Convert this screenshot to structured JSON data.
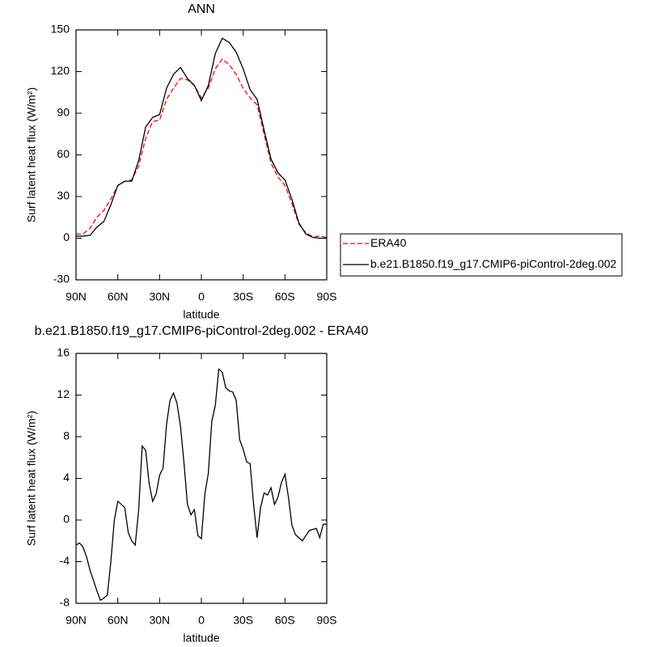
{
  "chart_data": [
    {
      "type": "line",
      "title": "ANN",
      "x_label": "latitude",
      "y_label": "Surf latent heat flux (W/m²)",
      "x": [
        90,
        85,
        80,
        75,
        70,
        65,
        60,
        55,
        50,
        45,
        40,
        35,
        30,
        25,
        20,
        15,
        10,
        5,
        0,
        -5,
        -10,
        -15,
        -20,
        -25,
        -30,
        -35,
        -40,
        -45,
        -50,
        -55,
        -60,
        -65,
        -70,
        -75,
        -80,
        -85,
        -90
      ],
      "series": [
        {
          "name": "ERA40",
          "color": "#ff0000",
          "style": "dashed",
          "values": [
            3,
            3,
            7,
            15,
            20,
            28,
            38,
            41,
            42,
            52,
            72,
            84,
            85,
            100,
            108,
            115,
            114,
            110,
            101,
            108,
            122,
            129,
            125,
            118,
            108,
            101,
            96,
            75,
            54,
            44,
            38,
            25,
            10,
            4,
            1,
            1.5,
            0.5
          ]
        },
        {
          "name": "b.e21.B1850.f19_g17.CMIP6-piControl-2deg.002",
          "color": "#000000",
          "style": "solid",
          "values": [
            1.5,
            1.5,
            2,
            8,
            12,
            24,
            38,
            41,
            41,
            56,
            80,
            87,
            89,
            108,
            118,
            123,
            115,
            110,
            99,
            110,
            133,
            144,
            141,
            134,
            122,
            107,
            100,
            78,
            57,
            47,
            42,
            28,
            11,
            3,
            0.5,
            0,
            0
          ]
        }
      ],
      "xlim": [
        90,
        -90
      ],
      "xticks": [
        {
          "value": 90,
          "label": "90N"
        },
        {
          "value": 60,
          "label": "60N"
        },
        {
          "value": 30,
          "label": "30N"
        },
        0,
        {
          "value": -30,
          "label": "30S"
        },
        {
          "value": -60,
          "label": "60S"
        },
        {
          "value": -90,
          "label": "90S"
        }
      ],
      "ylim": [
        -30,
        150
      ],
      "yticks": [
        -30,
        0,
        30,
        60,
        90,
        120,
        150
      ],
      "legend": "right"
    },
    {
      "type": "line",
      "title": "b.e21.B1850.f19_g17.CMIP6-piControl-2deg.002 - ERA40",
      "x_label": "latitude",
      "y_label": "Surf latent heat flux (W/m²)",
      "x": [
        90,
        87.5,
        85,
        82.5,
        80,
        77.5,
        75,
        72.5,
        70,
        67.5,
        65,
        62.5,
        60,
        57.5,
        55,
        52.5,
        50,
        47.5,
        45,
        42.5,
        40,
        37.5,
        35,
        32.5,
        30,
        27.5,
        25,
        22.5,
        20,
        17.5,
        15,
        12.5,
        10,
        7.5,
        5,
        2.5,
        0,
        -2.5,
        -5,
        -7.5,
        -10,
        -12.5,
        -15,
        -17.5,
        -20,
        -22.5,
        -25,
        -27.5,
        -30,
        -32.5,
        -35,
        -37.5,
        -40,
        -42.5,
        -45,
        -47.5,
        -50,
        -52.5,
        -55,
        -57.5,
        -60,
        -62.5,
        -65,
        -67.5,
        -70,
        -72.5,
        -75,
        -77.5,
        -80,
        -82.5,
        -85,
        -87.5,
        -90
      ],
      "series": [
        {
          "color": "#000000",
          "style": "solid",
          "values": [
            -2.4,
            -2.2,
            -2.6,
            -3.5,
            -4.8,
            -5.8,
            -6.8,
            -7.7,
            -7.5,
            -7.2,
            -4,
            0,
            1.8,
            1.5,
            1.2,
            -1.2,
            -2,
            -2.4,
            1,
            7.1,
            6.7,
            3.5,
            1.8,
            2.5,
            4.3,
            5,
            9.2,
            11.5,
            12.2,
            11.2,
            9,
            5.5,
            1.5,
            0.5,
            1,
            -1.5,
            -1.8,
            2.5,
            4.5,
            9.5,
            11,
            14.5,
            14.2,
            12.7,
            12.4,
            12.3,
            11.5,
            7.7,
            6.8,
            5.6,
            5.4,
            1.5,
            -1.7,
            1.2,
            2.6,
            2.4,
            3.1,
            1.5,
            2.2,
            3.6,
            4.4,
            2.2,
            -0.5,
            -1.4,
            -1.7,
            -2,
            -1.5,
            -1,
            -0.9,
            -0.8,
            -1.7,
            -0.4,
            -0.4
          ]
        }
      ],
      "xlim": [
        90,
        -90
      ],
      "xticks": [
        {
          "value": 90,
          "label": "90N"
        },
        {
          "value": 60,
          "label": "60N"
        },
        {
          "value": 30,
          "label": "30N"
        },
        0,
        {
          "value": -30,
          "label": "30S"
        },
        {
          "value": -60,
          "label": "60S"
        },
        {
          "value": -90,
          "label": "90S"
        }
      ],
      "ylim": [
        -8,
        16
      ],
      "yticks": [
        -8,
        -4,
        0,
        4,
        8,
        12,
        16
      ]
    }
  ]
}
